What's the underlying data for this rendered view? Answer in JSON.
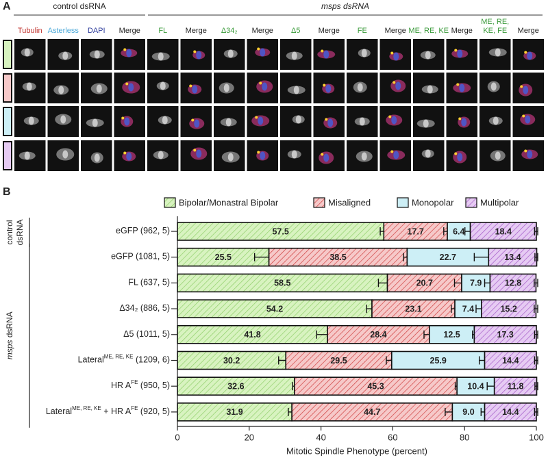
{
  "panel_a": {
    "label": "A",
    "group_labels": [
      "control dsRNA",
      "msps dsRNA"
    ],
    "column_labels": [
      {
        "lines": [
          "Tubulin"
        ],
        "color": "#c0302b"
      },
      {
        "lines": [
          "Asterless"
        ],
        "color": "#4aa8d8"
      },
      {
        "lines": [
          "DAPI"
        ],
        "color": "#2b3a9a"
      },
      {
        "lines": [
          "Merge"
        ],
        "color": "#222222"
      },
      {
        "lines": [
          "FL"
        ],
        "color": "#3a9a3a"
      },
      {
        "lines": [
          "Merge"
        ],
        "color": "#222222"
      },
      {
        "lines": [
          "Δ34₂"
        ],
        "color": "#3a9a3a"
      },
      {
        "lines": [
          "Merge"
        ],
        "color": "#222222"
      },
      {
        "lines": [
          "Δ5"
        ],
        "color": "#3a9a3a"
      },
      {
        "lines": [
          "Merge"
        ],
        "color": "#222222"
      },
      {
        "lines": [
          "FE"
        ],
        "color": "#3a9a3a"
      },
      {
        "lines": [
          "Merge"
        ],
        "color": "#222222"
      },
      {
        "lines": [
          "ME, RE, KE"
        ],
        "color": "#3a9a3a"
      },
      {
        "lines": [
          "Merge"
        ],
        "color": "#222222"
      },
      {
        "lines": [
          "ME, RE,",
          "KE, FE"
        ],
        "color": "#3a9a3a"
      },
      {
        "lines": [
          "Merge"
        ],
        "color": "#222222"
      }
    ]
  },
  "chart_data": {
    "type": "stacked_barh",
    "panel_label": "B",
    "categories": [
      [
        "eGFP (962, 5)"
      ],
      [
        "eGFP (1081, 5)"
      ],
      [
        "FL (637, 5)"
      ],
      [
        "Δ34₂ (886, 5)"
      ],
      [
        "Δ5 (1011, 5)"
      ],
      [
        "Lateral",
        "ME, RE, KE",
        " (1209, 6)"
      ],
      [
        "HR A",
        "FE",
        " (950, 5)"
      ],
      [
        "Lateral",
        "ME, RE, KE",
        " + HR A",
        "FE",
        " (920, 5)"
      ]
    ],
    "groups": [
      {
        "label": [
          "control",
          "dsRNA"
        ],
        "start": 0,
        "end": 0
      },
      {
        "label": [
          "msps",
          " dsRNA"
        ],
        "start": 1,
        "end": 7
      }
    ],
    "series": [
      {
        "name": "Bipolar/Monastral Bipolar",
        "color": "#d8f3c0",
        "hatch": "#8fcf6a",
        "values": [
          57.5,
          25.5,
          58.5,
          54.2,
          41.8,
          30.2,
          32.6,
          31.9
        ],
        "errors": [
          1.0,
          4.0,
          2.5,
          1.5,
          3.0,
          2.0,
          0.5,
          1.0
        ]
      },
      {
        "name": "Misaligned",
        "color": "#f6c9c9",
        "hatch": "#d04040",
        "values": [
          17.7,
          38.5,
          20.7,
          23.1,
          28.4,
          29.5,
          45.3,
          44.7
        ],
        "errors": [
          1.0,
          1.0,
          2.0,
          1.0,
          1.5,
          1.5,
          0.5,
          2.0
        ]
      },
      {
        "name": "Monopolar",
        "color": "#cdeff6",
        "hatch": null,
        "values": [
          6.4,
          22.7,
          7.9,
          7.4,
          12.5,
          25.9,
          10.4,
          9.0
        ],
        "value_labels": [
          "6.4",
          "22.7",
          "7.9",
          "7.4",
          "12.5",
          "25.9",
          "10.4",
          "9.0"
        ],
        "errors": [
          1.5,
          4.0,
          1.5,
          1.5,
          0.5,
          1.5,
          2.0,
          1.0
        ]
      },
      {
        "name": "Multipolar",
        "color": "#e6cbf3",
        "hatch": "#a45ac8",
        "values": [
          18.4,
          13.4,
          12.8,
          15.2,
          17.3,
          14.4,
          11.8,
          14.4
        ],
        "errors": [
          0.5,
          0.5,
          0.5,
          0.5,
          0.5,
          0.5,
          0.5,
          0.5
        ]
      }
    ],
    "xlim": [
      0,
      100
    ],
    "xticks": [
      0,
      20,
      40,
      60,
      80,
      100
    ],
    "xlabel": "Mitotic Spindle Phenotype (percent)"
  }
}
